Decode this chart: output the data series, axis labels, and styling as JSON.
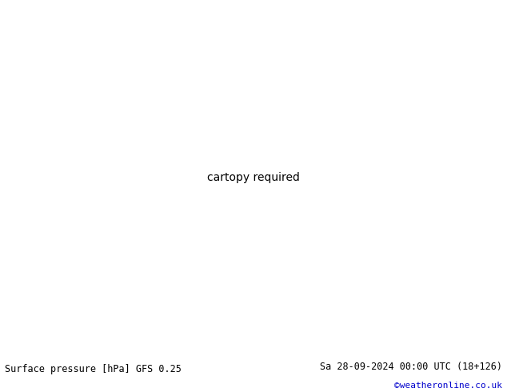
{
  "title_left": "Surface pressure [hPa] GFS 0.25",
  "title_right": "Sa 28-09-2024 00:00 UTC (18+126)",
  "title_right2": "©weatheronline.co.uk",
  "bg_color": "#d4d8e0",
  "land_color": "#c8e8b4",
  "land_border_color": "#888888",
  "footer_bg": "#e0e0ec",
  "bottom_text_color": "#000000",
  "credit_color": "#0000cc",
  "isobar_black_color": "#000000",
  "isobar_red_color": "#cc0000",
  "isobar_blue_color": "#0000cc",
  "lon_min": 90,
  "lon_max": 185,
  "lat_min": -57,
  "lat_max": 22,
  "figsize": [
    6.34,
    4.9
  ],
  "dpi": 100
}
